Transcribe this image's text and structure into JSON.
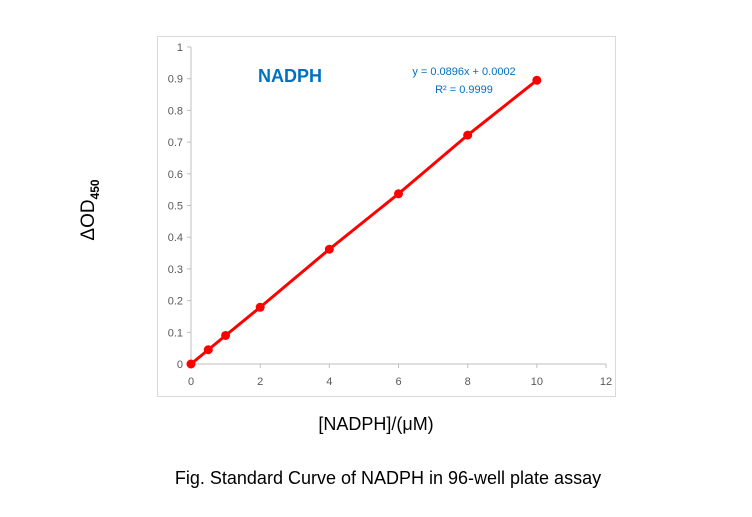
{
  "chart_data": {
    "type": "line",
    "title": "NADPH",
    "xlabel": "[NADPH]/(μM)",
    "ylabel_main": "ΔOD",
    "ylabel_sub": "450",
    "caption": "Fig. Standard Curve of NADPH in 96-well plate assay",
    "equation": "y = 0.0896x + 0.0002",
    "r2": "R² = 0.9999",
    "xlim": [
      0,
      12
    ],
    "ylim": [
      0,
      1
    ],
    "xticks": [
      0,
      2,
      4,
      6,
      8,
      10,
      12
    ],
    "yticks": [
      0,
      0.1,
      0.2,
      0.3,
      0.4,
      0.5,
      0.6,
      0.7,
      0.8,
      0.9,
      1
    ],
    "grid": false,
    "series": [
      {
        "name": "NADPH",
        "color": "#ff0000",
        "x": [
          0,
          0.5,
          1,
          2,
          4,
          6,
          8,
          10
        ],
        "y": [
          0,
          0.045,
          0.09,
          0.179,
          0.362,
          0.537,
          0.722,
          0.895
        ]
      }
    ],
    "text_color": "#0070c0"
  }
}
